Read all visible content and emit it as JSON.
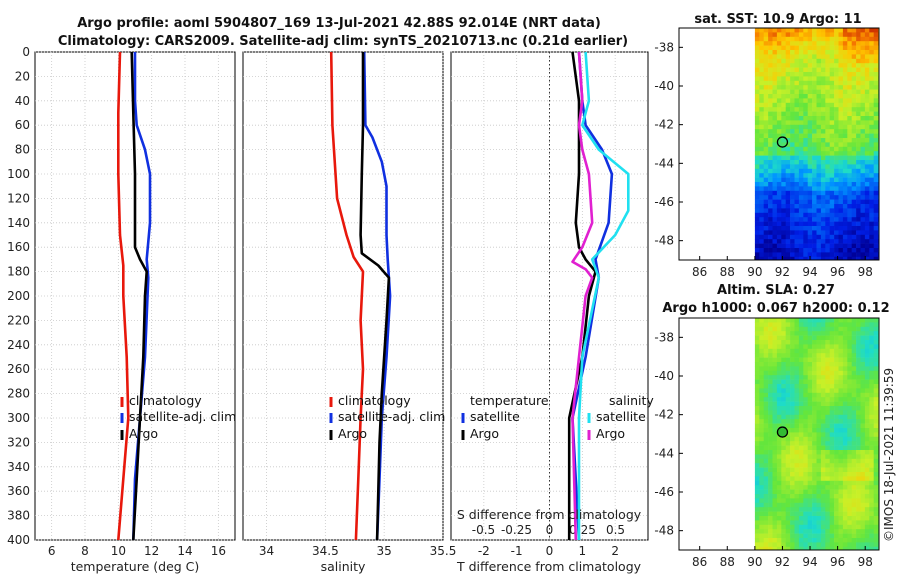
{
  "header": {
    "line1": "Argo profile: aoml 5904807_169 13-Jul-2021 42.88S 92.014E (NRT data)",
    "line2": "Climatology: CARS2009. Satellite-adj clim: synTS_20210713.nc (0.21d earlier)"
  },
  "watermark": "©IMOS 18-Jul-2021 11:39:59",
  "colors": {
    "climatology": "#e8180c",
    "satellite": "#1030e0",
    "argo": "#000000",
    "salinity_sat": "#20e0f0",
    "salinity_argo": "#e020d0"
  },
  "chart_data": [
    {
      "type": "line",
      "title": "",
      "xlabel": "temperature (deg C)",
      "ylabel": "",
      "xlim": [
        5,
        17
      ],
      "ylim": [
        400,
        0
      ],
      "xticks": [
        "6",
        "8",
        "10",
        "12",
        "14",
        "16"
      ],
      "yticks": [
        "0",
        "20",
        "40",
        "60",
        "80",
        "100",
        "120",
        "140",
        "160",
        "180",
        "200",
        "220",
        "240",
        "260",
        "280",
        "300",
        "320",
        "340",
        "360",
        "380",
        "400"
      ],
      "legend": [
        "climatology",
        "satellite-adj. clim",
        "Argo"
      ],
      "series": [
        {
          "name": "climatology",
          "color": "#e8180c",
          "points": [
            [
              10.1,
              0
            ],
            [
              10.0,
              50
            ],
            [
              10.0,
              100
            ],
            [
              10.1,
              150
            ],
            [
              10.3,
              175
            ],
            [
              10.3,
              200
            ],
            [
              10.5,
              250
            ],
            [
              10.6,
              300
            ],
            [
              10.3,
              350
            ],
            [
              10.0,
              400
            ]
          ]
        },
        {
          "name": "satellite-adj. clim",
          "color": "#1030e0",
          "points": [
            [
              11.0,
              0
            ],
            [
              11.0,
              40
            ],
            [
              11.1,
              60
            ],
            [
              11.6,
              80
            ],
            [
              11.9,
              100
            ],
            [
              11.9,
              140
            ],
            [
              11.7,
              170
            ],
            [
              11.8,
              185
            ],
            [
              11.6,
              250
            ],
            [
              11.3,
              300
            ],
            [
              11.0,
              350
            ],
            [
              10.9,
              400
            ]
          ]
        },
        {
          "name": "Argo",
          "color": "#000000",
          "points": [
            [
              10.8,
              0
            ],
            [
              10.9,
              50
            ],
            [
              11.0,
              100
            ],
            [
              11.0,
              160
            ],
            [
              11.3,
              170
            ],
            [
              11.7,
              180
            ],
            [
              11.6,
              200
            ],
            [
              11.5,
              250
            ],
            [
              11.3,
              300
            ],
            [
              11.1,
              350
            ],
            [
              10.9,
              400
            ]
          ]
        }
      ]
    },
    {
      "type": "line",
      "title": "",
      "xlabel": "salinity",
      "ylabel": "",
      "xlim": [
        33.8,
        35.5
      ],
      "ylim": [
        400,
        0
      ],
      "xticks": [
        "34",
        "34.5",
        "35",
        "35.5"
      ],
      "legend": [
        "climatology",
        "satellite-adj. clim",
        "Argo"
      ],
      "series": [
        {
          "name": "climatology",
          "color": "#e8180c",
          "points": [
            [
              34.55,
              0
            ],
            [
              34.56,
              60
            ],
            [
              34.6,
              120
            ],
            [
              34.68,
              150
            ],
            [
              34.74,
              168
            ],
            [
              34.82,
              180
            ],
            [
              34.8,
              220
            ],
            [
              34.82,
              260
            ],
            [
              34.8,
              300
            ],
            [
              34.78,
              350
            ],
            [
              34.76,
              400
            ]
          ]
        },
        {
          "name": "satellite-adj. clim",
          "color": "#1030e0",
          "points": [
            [
              34.83,
              0
            ],
            [
              34.84,
              60
            ],
            [
              34.9,
              70
            ],
            [
              34.98,
              90
            ],
            [
              35.02,
              110
            ],
            [
              35.02,
              150
            ],
            [
              35.03,
              170
            ],
            [
              35.05,
              200
            ],
            [
              35.02,
              250
            ],
            [
              34.98,
              300
            ],
            [
              34.96,
              350
            ],
            [
              34.94,
              400
            ]
          ]
        },
        {
          "name": "Argo",
          "color": "#000000",
          "points": [
            [
              34.82,
              0
            ],
            [
              34.82,
              60
            ],
            [
              34.81,
              100
            ],
            [
              34.8,
              150
            ],
            [
              34.81,
              165
            ],
            [
              34.95,
              175
            ],
            [
              35.04,
              185
            ],
            [
              35.02,
              220
            ],
            [
              34.98,
              280
            ],
            [
              34.96,
              320
            ],
            [
              34.94,
              400
            ]
          ]
        }
      ]
    },
    {
      "type": "line",
      "title": "",
      "xlabel": "T difference from climatology",
      "ylabel": "",
      "xlim": [
        -3,
        3
      ],
      "ylim": [
        400,
        0
      ],
      "xticks": [
        "-2",
        "-1",
        "0",
        "1",
        "2"
      ],
      "top_axis_label": "S difference from climatology",
      "top_ticks": [
        "-0.5",
        "-0.25",
        "0",
        "0.25",
        "0.5"
      ],
      "legend_temperature": {
        "title": "temperature",
        "items": [
          "satellite",
          "Argo"
        ]
      },
      "legend_salinity": {
        "title": "salinity",
        "items": [
          "satellite",
          "Argo"
        ]
      },
      "series": [
        {
          "name": "temperature satellite",
          "color": "#1030e0",
          "points": [
            [
              0.9,
              0
            ],
            [
              1.0,
              40
            ],
            [
              1.1,
              60
            ],
            [
              1.6,
              80
            ],
            [
              1.9,
              100
            ],
            [
              1.8,
              140
            ],
            [
              1.4,
              170
            ],
            [
              1.5,
              185
            ],
            [
              1.1,
              250
            ],
            [
              0.7,
              300
            ],
            [
              0.9,
              400
            ]
          ]
        },
        {
          "name": "temperature Argo",
          "color": "#000000",
          "points": [
            [
              0.7,
              0
            ],
            [
              0.9,
              40
            ],
            [
              0.9,
              100
            ],
            [
              0.8,
              140
            ],
            [
              0.9,
              160
            ],
            [
              1.1,
              170
            ],
            [
              1.4,
              180
            ],
            [
              1.2,
              200
            ],
            [
              1.0,
              250
            ],
            [
              0.6,
              300
            ],
            [
              0.6,
              400
            ]
          ]
        },
        {
          "name": "salinity satellite",
          "color": "#20e0f0",
          "points": [
            [
              1.1,
              0
            ],
            [
              1.2,
              40
            ],
            [
              1.0,
              60
            ],
            [
              1.5,
              80
            ],
            [
              2.4,
              100
            ],
            [
              2.4,
              130
            ],
            [
              2.0,
              150
            ],
            [
              1.3,
              170
            ],
            [
              1.5,
              185
            ],
            [
              1.0,
              250
            ],
            [
              0.9,
              300
            ],
            [
              0.9,
              400
            ]
          ]
        },
        {
          "name": "salinity Argo",
          "color": "#e020d0",
          "points": [
            [
              0.9,
              0
            ],
            [
              1.0,
              40
            ],
            [
              0.9,
              60
            ],
            [
              1.0,
              80
            ],
            [
              1.2,
              100
            ],
            [
              1.3,
              140
            ],
            [
              1.0,
              160
            ],
            [
              0.7,
              172
            ],
            [
              1.1,
              178
            ],
            [
              1.3,
              185
            ],
            [
              1.1,
              200
            ],
            [
              0.9,
              250
            ],
            [
              0.7,
              300
            ],
            [
              0.8,
              400
            ]
          ]
        }
      ]
    },
    {
      "type": "heatmap",
      "title": "sat. SST: 10.9 Argo: 11",
      "xlim": [
        84.5,
        99
      ],
      "ylim": [
        -49,
        -37
      ],
      "xticks": [
        "86",
        "88",
        "90",
        "92",
        "94",
        "96",
        "98"
      ],
      "yticks": [
        "-38",
        "-40",
        "-42",
        "-44",
        "-46",
        "-48"
      ],
      "argo_location": [
        92.0,
        -42.9
      ],
      "data_west_edge": 90
    },
    {
      "type": "heatmap",
      "title": "Altim. SLA: 0.27",
      "title2": "Argo h1000: 0.067 h2000: 0.12",
      "xlim": [
        84.5,
        99
      ],
      "ylim": [
        -49,
        -37
      ],
      "xticks": [
        "86",
        "88",
        "90",
        "92",
        "94",
        "96",
        "98"
      ],
      "yticks": [
        "-38",
        "-40",
        "-42",
        "-44",
        "-46",
        "-48"
      ],
      "argo_location": [
        92.0,
        -42.9
      ],
      "data_west_edge": 90
    }
  ]
}
